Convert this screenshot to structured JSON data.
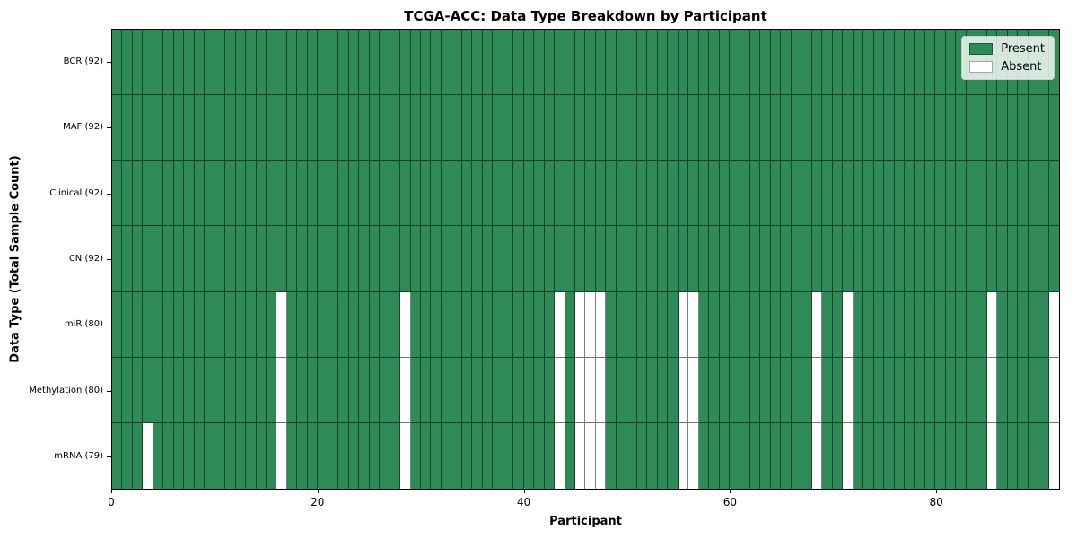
{
  "chart_data": {
    "type": "heatmap",
    "title": "TCGA-ACC: Data Type Breakdown by Participant",
    "xlabel": "Participant",
    "ylabel": "Data Type (Total Sample Count)",
    "n_participants": 92,
    "x_range": [
      0,
      92
    ],
    "x_ticks": [
      0,
      20,
      40,
      60,
      80
    ],
    "grid": true,
    "legend_position": "upper right",
    "colors": {
      "present": "#2e8b57",
      "absent": "#ffffff"
    },
    "rows": [
      {
        "label": "BCR (92)",
        "data_type": "BCR",
        "present_count": 92,
        "absent_participants": []
      },
      {
        "label": "MAF (92)",
        "data_type": "MAF",
        "present_count": 92,
        "absent_participants": []
      },
      {
        "label": "Clinical (92)",
        "data_type": "Clinical",
        "present_count": 92,
        "absent_participants": []
      },
      {
        "label": "CN (92)",
        "data_type": "CN",
        "present_count": 92,
        "absent_participants": []
      },
      {
        "label": "miR (80)",
        "data_type": "miR",
        "present_count": 80,
        "absent_participants": [
          16,
          28,
          43,
          45,
          46,
          47,
          55,
          56,
          68,
          71,
          85,
          91
        ]
      },
      {
        "label": "Methylation (80)",
        "data_type": "Methylation",
        "present_count": 80,
        "absent_participants": [
          16,
          28,
          43,
          45,
          46,
          47,
          55,
          56,
          68,
          71,
          85,
          91
        ]
      },
      {
        "label": "mRNA (79)",
        "data_type": "mRNA",
        "present_count": 79,
        "absent_participants": [
          3,
          16,
          28,
          43,
          45,
          46,
          47,
          55,
          56,
          68,
          71,
          85,
          91
        ]
      }
    ],
    "legend": [
      {
        "label": "Present",
        "color": "#2e8b57"
      },
      {
        "label": "Absent",
        "color": "#ffffff"
      }
    ]
  }
}
